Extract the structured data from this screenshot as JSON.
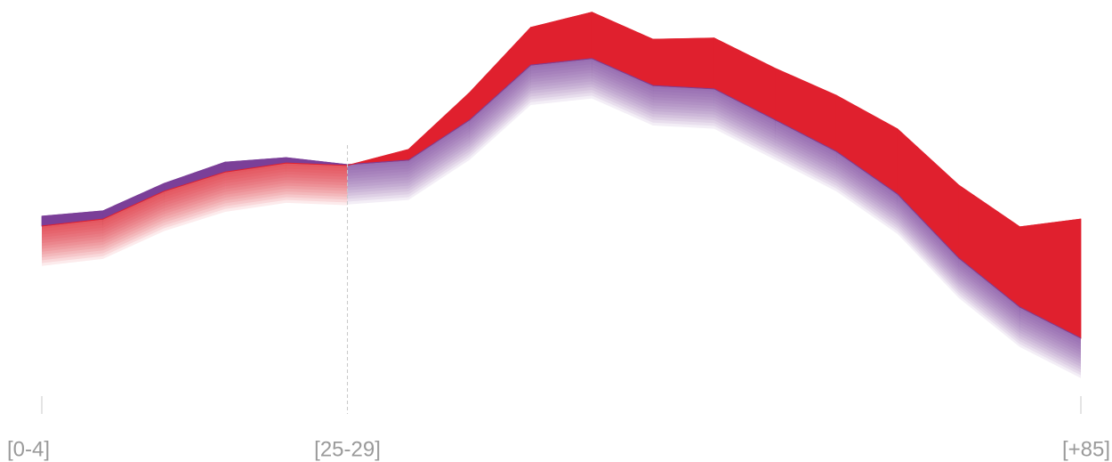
{
  "chart_data": {
    "type": "area_band",
    "categories": [
      "[0-4]",
      null,
      null,
      null,
      null,
      "[25-29]",
      null,
      null,
      null,
      null,
      null,
      null,
      null,
      null,
      null,
      null,
      null,
      "[+85]"
    ],
    "series": [
      {
        "name": null,
        "color": "#7b3f98",
        "values": [
          47.2,
          48.5,
          55.2,
          60.4,
          61.5,
          59.8,
          60.9,
          70.7,
          84.1,
          85.7,
          79.1,
          78.3,
          70.7,
          63.0,
          52.6,
          37.0,
          25.0,
          17.4
        ]
      },
      {
        "name": null,
        "color": "#e0202e",
        "values": [
          44.8,
          46.5,
          53.3,
          58.0,
          60.2,
          59.6,
          63.5,
          77.4,
          93.3,
          97.0,
          90.4,
          90.7,
          83.3,
          76.7,
          68.5,
          54.8,
          44.6,
          46.5
        ]
      }
    ],
    "ylim": [
      0,
      100
    ]
  }
}
